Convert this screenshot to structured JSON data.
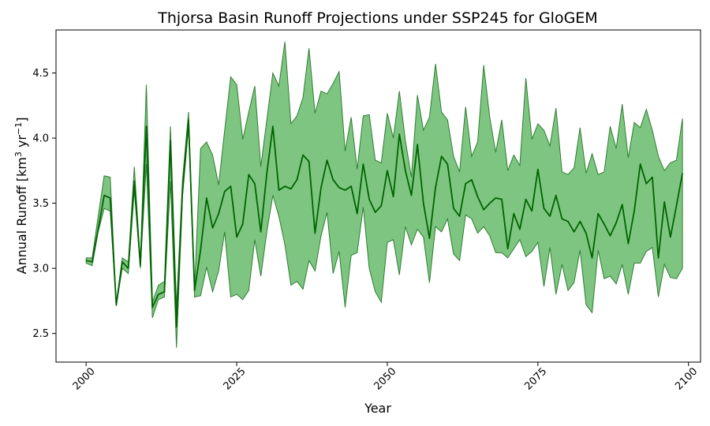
{
  "chart_data": {
    "type": "area",
    "title": "Thjorsa Basin Runoff Projections under SSP245 for GloGEM",
    "xlabel": "Year",
    "ylabel": "Annual Runoff [km³ yr⁻¹]",
    "xlim": [
      1995,
      2102
    ],
    "ylim": [
      2.28,
      4.83
    ],
    "xticks": [
      2000,
      2025,
      2050,
      2075,
      2100
    ],
    "xtick_labels": [
      "2000",
      "2025",
      "2050",
      "2075",
      "2100"
    ],
    "yticks": [
      2.5,
      3.0,
      3.5,
      4.0,
      4.5
    ],
    "ytick_labels": [
      "2.5",
      "3.0",
      "3.5",
      "4.0",
      "4.5"
    ],
    "grid": false,
    "colors": {
      "line": "#006400",
      "band_fill": "#4caf50",
      "band_edge": "#2e7d32"
    },
    "x": [
      2000,
      2001,
      2002,
      2003,
      2004,
      2005,
      2006,
      2007,
      2008,
      2009,
      2010,
      2011,
      2012,
      2013,
      2014,
      2015,
      2016,
      2017,
      2018,
      2019,
      2020,
      2021,
      2022,
      2023,
      2024,
      2025,
      2026,
      2027,
      2028,
      2029,
      2030,
      2031,
      2032,
      2033,
      2034,
      2035,
      2036,
      2037,
      2038,
      2039,
      2040,
      2041,
      2042,
      2043,
      2044,
      2045,
      2046,
      2047,
      2048,
      2049,
      2050,
      2051,
      2052,
      2053,
      2054,
      2055,
      2056,
      2057,
      2058,
      2059,
      2060,
      2061,
      2062,
      2063,
      2064,
      2065,
      2066,
      2067,
      2068,
      2069,
      2070,
      2071,
      2072,
      2073,
      2074,
      2075,
      2076,
      2077,
      2078,
      2079,
      2080,
      2081,
      2082,
      2083,
      2084,
      2085,
      2086,
      2087,
      2088,
      2089,
      2090,
      2091,
      2092,
      2093,
      2094,
      2095,
      2096,
      2097,
      2098,
      2099
    ],
    "series": [
      {
        "values": [
          3.06,
          3.05,
          3.3,
          3.56,
          3.54,
          2.72,
          3.05,
          3.0,
          3.67,
          3.02,
          4.09,
          2.7,
          2.8,
          2.82,
          3.98,
          2.55,
          3.6,
          4.14,
          2.83,
          3.14,
          3.54,
          3.31,
          3.42,
          3.59,
          3.63,
          3.24,
          3.34,
          3.72,
          3.65,
          3.28,
          3.73,
          4.09,
          3.6,
          3.63,
          3.61,
          3.68,
          3.87,
          3.82,
          3.27,
          3.62,
          3.83,
          3.68,
          3.62,
          3.6,
          3.63,
          3.42,
          3.8,
          3.53,
          3.43,
          3.48,
          3.75,
          3.55,
          4.03,
          3.75,
          3.56,
          3.95,
          3.5,
          3.23,
          3.62,
          3.86,
          3.8,
          3.46,
          3.4,
          3.65,
          3.68,
          3.55,
          3.45,
          3.5,
          3.54,
          3.53,
          3.15,
          3.42,
          3.3,
          3.53,
          3.44,
          3.76,
          3.46,
          3.4,
          3.56,
          3.38,
          3.36,
          3.28,
          3.36,
          3.27,
          3.08,
          3.42,
          3.34,
          3.25,
          3.35,
          3.49,
          3.19,
          3.44,
          3.8,
          3.65,
          3.7,
          3.08,
          3.51,
          3.24,
          3.48,
          3.73
        ]
      },
      {
        "values": [
          3.04,
          3.02,
          3.28,
          3.46,
          3.44,
          2.71,
          3.0,
          2.96,
          3.6,
          3.0,
          3.8,
          2.62,
          2.76,
          2.78,
          3.67,
          2.39,
          3.55,
          4.08,
          2.78,
          2.79,
          3.01,
          2.82,
          2.98,
          3.28,
          2.78,
          2.8,
          2.76,
          2.83,
          3.22,
          2.94,
          3.28,
          3.56,
          3.4,
          3.18,
          2.87,
          2.9,
          2.84,
          3.06,
          2.98,
          3.25,
          3.43,
          2.96,
          3.13,
          2.7,
          3.1,
          3.12,
          3.47,
          3.0,
          2.82,
          2.74,
          3.2,
          3.22,
          2.95,
          3.32,
          3.18,
          3.3,
          3.24,
          2.89,
          3.32,
          3.28,
          3.38,
          3.11,
          3.06,
          3.41,
          3.38,
          3.27,
          3.32,
          3.25,
          3.12,
          3.12,
          3.08,
          3.15,
          3.22,
          3.09,
          3.13,
          3.2,
          2.86,
          3.16,
          2.8,
          3.03,
          2.83,
          2.89,
          3.14,
          2.72,
          2.66,
          3.14,
          2.92,
          2.94,
          2.88,
          3.03,
          2.8,
          3.04,
          3.04,
          3.13,
          3.16,
          2.78,
          3.03,
          2.93,
          2.92,
          3.0
        ]
      },
      {
        "values": [
          3.08,
          3.08,
          3.4,
          3.71,
          3.7,
          2.73,
          3.08,
          3.05,
          3.78,
          3.05,
          4.41,
          2.74,
          2.87,
          2.9,
          4.09,
          2.7,
          3.68,
          4.2,
          2.85,
          3.92,
          3.97,
          3.87,
          3.64,
          4.06,
          4.47,
          4.41,
          3.99,
          4.2,
          4.4,
          3.78,
          4.14,
          4.5,
          4.4,
          4.74,
          4.11,
          4.17,
          4.31,
          4.69,
          4.19,
          4.36,
          4.34,
          4.42,
          4.51,
          3.9,
          4.16,
          3.76,
          4.17,
          4.18,
          3.83,
          3.81,
          4.19,
          4.0,
          4.36,
          3.98,
          3.7,
          4.33,
          4.06,
          4.16,
          4.57,
          4.2,
          4.14,
          3.86,
          3.74,
          4.24,
          3.86,
          3.97,
          4.56,
          4.16,
          3.89,
          4.14,
          3.75,
          3.87,
          3.79,
          4.46,
          3.99,
          4.11,
          4.06,
          3.94,
          4.23,
          3.74,
          3.72,
          3.77,
          4.08,
          3.73,
          3.88,
          3.72,
          3.74,
          4.09,
          3.92,
          4.26,
          3.85,
          4.12,
          4.08,
          4.22,
          4.06,
          3.86,
          3.75,
          3.81,
          3.83,
          4.15
        ]
      }
    ]
  }
}
